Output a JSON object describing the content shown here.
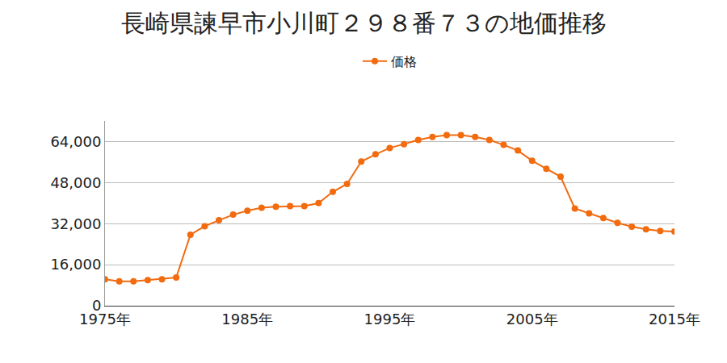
{
  "chart_data": {
    "type": "line",
    "title": "長崎県諫早市小川町２９８番７３の地価推移",
    "x": [
      1975,
      1976,
      1977,
      1978,
      1979,
      1980,
      1981,
      1982,
      1983,
      1984,
      1985,
      1986,
      1987,
      1988,
      1989,
      1990,
      1991,
      1992,
      1993,
      1994,
      1995,
      1996,
      1997,
      1998,
      1999,
      2000,
      2001,
      2002,
      2003,
      2004,
      2005,
      2006,
      2007,
      2008,
      2009,
      2010,
      2011,
      2012,
      2013,
      2014,
      2015
    ],
    "series": [
      {
        "name": "価格",
        "color": "#f26b0f",
        "marker": "circle",
        "values": [
          10300,
          9500,
          9500,
          10000,
          10300,
          11000,
          27700,
          31000,
          33300,
          35500,
          37000,
          38200,
          38600,
          38800,
          38800,
          40000,
          44400,
          47500,
          56200,
          59000,
          61500,
          63000,
          64600,
          65800,
          66500,
          66500,
          65800,
          64600,
          62700,
          60500,
          56500,
          53400,
          50300,
          37900,
          36000,
          34200,
          32300,
          30800,
          29800,
          29200,
          28900
        ]
      }
    ],
    "xlim": [
      1975,
      2015
    ],
    "xticks": [
      {
        "value": 1975,
        "label": "1975年"
      },
      {
        "value": 1985,
        "label": "1985年"
      },
      {
        "value": 1995,
        "label": "1995年"
      },
      {
        "value": 2005,
        "label": "2005年"
      },
      {
        "value": 2015,
        "label": "2015年"
      }
    ],
    "ylim": [
      0,
      72000
    ],
    "yticks": [
      0,
      {
        "value": 16000,
        "label": "16,000"
      },
      {
        "value": 32000,
        "label": "32,000"
      },
      {
        "value": 48000,
        "label": "48,000"
      },
      {
        "value": 64000,
        "label": "64,000"
      }
    ],
    "grid": true,
    "legend": "top"
  }
}
